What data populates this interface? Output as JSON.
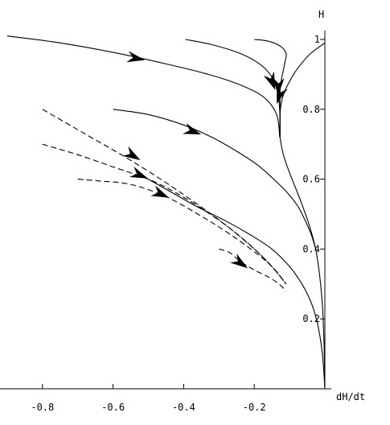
{
  "chart_data": {
    "type": "line",
    "title": "",
    "xlabel": "dH/dt",
    "ylabel": "H",
    "xlim": [
      -0.9,
      0.0
    ],
    "ylim": [
      0.0,
      1.02
    ],
    "x_ticks": [
      -0.8,
      -0.6,
      -0.4,
      -0.2
    ],
    "x_tick_labels": [
      "-0.8",
      "-0.6",
      "-0.4",
      "-0.2"
    ],
    "y_ticks": [
      0.2,
      0.4,
      0.6,
      0.8,
      1.0
    ],
    "y_tick_labels": [
      "0.2",
      "0.4",
      "0.6",
      "0.8",
      "1"
    ],
    "grid": false,
    "legend": "none",
    "series": [
      {
        "style": "solid",
        "arrow_at": [
          -0.53,
          0.945
        ],
        "points": [
          [
            -0.9,
            1.01
          ],
          [
            -0.75,
            0.99
          ],
          [
            -0.6,
            0.963
          ],
          [
            -0.45,
            0.93
          ],
          [
            -0.33,
            0.9
          ],
          [
            -0.24,
            0.87
          ],
          [
            -0.18,
            0.84
          ],
          [
            -0.15,
            0.81
          ],
          [
            -0.135,
            0.78
          ],
          [
            -0.13,
            0.75
          ],
          [
            -0.128,
            0.72
          ]
        ]
      },
      {
        "style": "solid",
        "arrow_at": [
          -0.148,
          0.875
        ],
        "points": [
          [
            -0.395,
            1.0
          ],
          [
            -0.32,
            0.985
          ],
          [
            -0.24,
            0.96
          ],
          [
            -0.185,
            0.93
          ],
          [
            -0.155,
            0.9
          ],
          [
            -0.14,
            0.87
          ],
          [
            -0.132,
            0.84
          ],
          [
            -0.128,
            0.8
          ],
          [
            -0.127,
            0.76
          ],
          [
            -0.127,
            0.72
          ]
        ]
      },
      {
        "style": "solid",
        "arrow_at": [
          -0.132,
          0.86
        ],
        "points": [
          [
            -0.2,
            1.0
          ],
          [
            -0.16,
            0.995
          ],
          [
            -0.125,
            0.98
          ],
          [
            -0.11,
            0.96
          ],
          [
            -0.112,
            0.94
          ],
          [
            -0.118,
            0.91
          ],
          [
            -0.124,
            0.88
          ],
          [
            -0.127,
            0.85
          ],
          [
            -0.127,
            0.8
          ],
          [
            -0.127,
            0.72
          ]
        ]
      },
      {
        "style": "solid",
        "arrow_at": [
          -0.13,
          0.835
        ],
        "points": [
          [
            0.0,
            0.99
          ],
          [
            -0.04,
            0.96
          ],
          [
            -0.075,
            0.92
          ],
          [
            -0.1,
            0.88
          ],
          [
            -0.118,
            0.84
          ],
          [
            -0.126,
            0.8
          ],
          [
            -0.127,
            0.76
          ],
          [
            -0.127,
            0.72
          ]
        ]
      },
      {
        "style": "solid",
        "arrow_at": null,
        "points": [
          [
            -0.127,
            0.72
          ],
          [
            -0.12,
            0.68
          ],
          [
            -0.108,
            0.64
          ],
          [
            -0.093,
            0.6
          ],
          [
            -0.077,
            0.56
          ],
          [
            -0.062,
            0.52
          ],
          [
            -0.048,
            0.48
          ],
          [
            -0.036,
            0.44
          ],
          [
            -0.026,
            0.4
          ],
          [
            -0.018,
            0.35
          ],
          [
            -0.012,
            0.3
          ],
          [
            -0.007,
            0.24
          ],
          [
            -0.004,
            0.18
          ],
          [
            -0.002,
            0.12
          ],
          [
            -0.001,
            0.06
          ],
          [
            0.0,
            0.0
          ]
        ]
      },
      {
        "style": "solid",
        "arrow_at": [
          -0.37,
          0.735
        ],
        "points": [
          [
            -0.6,
            0.8
          ],
          [
            -0.5,
            0.785
          ],
          [
            -0.4,
            0.755
          ],
          [
            -0.32,
            0.72
          ],
          [
            -0.25,
            0.68
          ],
          [
            -0.19,
            0.64
          ],
          [
            -0.145,
            0.6
          ],
          [
            -0.105,
            0.56
          ],
          [
            -0.075,
            0.52
          ],
          [
            -0.055,
            0.48
          ],
          [
            -0.038,
            0.44
          ],
          [
            -0.026,
            0.4
          ]
        ]
      },
      {
        "style": "solid",
        "arrow_at": null,
        "points": [
          [
            -0.5,
            0.6
          ],
          [
            -0.43,
            0.56
          ],
          [
            -0.36,
            0.52
          ],
          [
            -0.28,
            0.48
          ],
          [
            -0.21,
            0.44
          ],
          [
            -0.15,
            0.4
          ],
          [
            -0.1,
            0.35
          ],
          [
            -0.065,
            0.3
          ],
          [
            -0.04,
            0.25
          ],
          [
            -0.024,
            0.2
          ],
          [
            -0.014,
            0.15
          ],
          [
            -0.007,
            0.1
          ],
          [
            -0.003,
            0.05
          ],
          [
            0.0,
            0.0
          ]
        ]
      },
      {
        "style": "dashed",
        "arrow_at": [
          -0.54,
          0.665
        ],
        "points": [
          [
            -0.8,
            0.8
          ],
          [
            -0.68,
            0.73
          ],
          [
            -0.56,
            0.66
          ],
          [
            -0.45,
            0.59
          ],
          [
            -0.35,
            0.52
          ],
          [
            -0.27,
            0.46
          ],
          [
            -0.2,
            0.4
          ],
          [
            -0.15,
            0.35
          ],
          [
            -0.11,
            0.3
          ]
        ]
      },
      {
        "style": "dashed",
        "arrow_at": [
          -0.52,
          0.61
        ],
        "points": [
          [
            -0.8,
            0.7
          ],
          [
            -0.7,
            0.67
          ],
          [
            -0.6,
            0.635
          ],
          [
            -0.5,
            0.6
          ],
          [
            -0.42,
            0.56
          ],
          [
            -0.34,
            0.51
          ],
          [
            -0.27,
            0.46
          ],
          [
            -0.21,
            0.41
          ],
          [
            -0.15,
            0.35
          ],
          [
            -0.11,
            0.3
          ]
        ]
      },
      {
        "style": "dashed",
        "arrow_at": [
          -0.46,
          0.555
        ],
        "points": [
          [
            -0.7,
            0.6
          ],
          [
            -0.64,
            0.595
          ],
          [
            -0.55,
            0.585
          ],
          [
            -0.45,
            0.55
          ],
          [
            -0.36,
            0.5
          ],
          [
            -0.28,
            0.45
          ],
          [
            -0.21,
            0.4
          ],
          [
            -0.15,
            0.35
          ],
          [
            -0.11,
            0.3
          ]
        ]
      },
      {
        "style": "dashed",
        "arrow_at": [
          -0.235,
          0.357
        ],
        "points": [
          [
            -0.3,
            0.4
          ],
          [
            -0.27,
            0.39
          ],
          [
            -0.24,
            0.365
          ],
          [
            -0.2,
            0.34
          ],
          [
            -0.16,
            0.32
          ],
          [
            -0.13,
            0.3
          ],
          [
            -0.11,
            0.28
          ]
        ]
      }
    ]
  }
}
